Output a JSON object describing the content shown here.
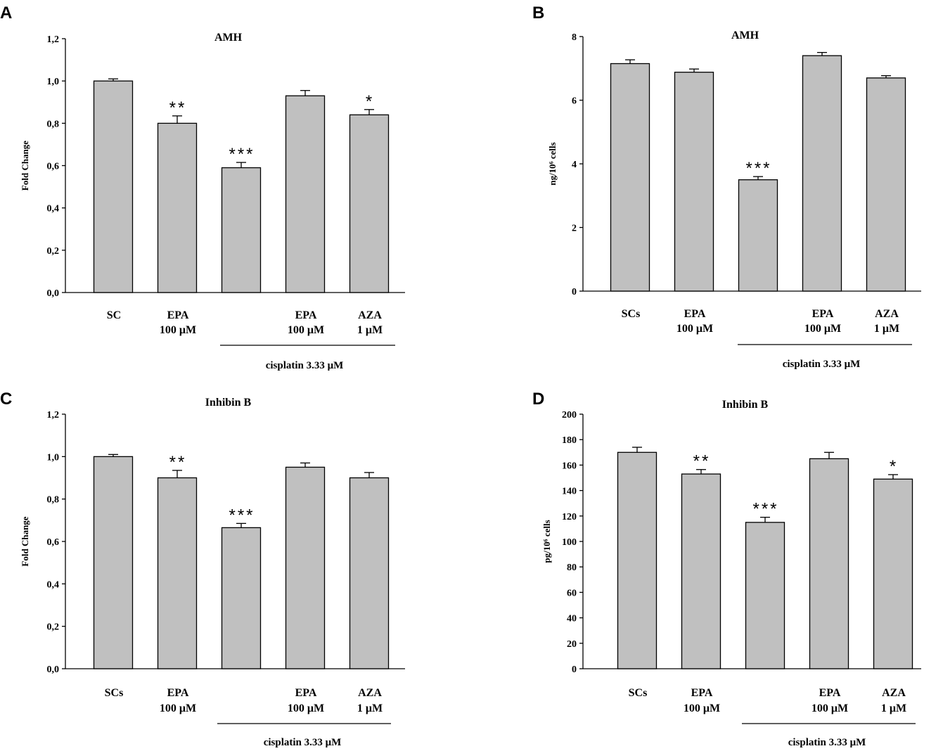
{
  "chart_data": [
    {
      "panel": "A",
      "type": "bar",
      "title": "AMH",
      "ylabel": "Fold Change",
      "ylim": [
        0,
        1.2
      ],
      "ticks": [
        "0,0",
        "0,2",
        "0,4",
        "0,6",
        "0,8",
        "1,0",
        "1,2"
      ],
      "categories": [
        {
          "line1": "SC",
          "line2": ""
        },
        {
          "line1": "EPA",
          "line2": "100 μM"
        },
        {
          "line1": "",
          "line2": ""
        },
        {
          "line1": "EPA",
          "line2": "100 μM"
        },
        {
          "line1": "AZA",
          "line2": "1 μM"
        }
      ],
      "values": [
        1.0,
        0.8,
        0.59,
        0.93,
        0.84
      ],
      "errors": [
        0.01,
        0.035,
        0.025,
        0.025,
        0.025
      ],
      "significance": [
        "",
        "**",
        "***",
        "",
        "*"
      ],
      "group_label": "cisplatin 3.33 μM"
    },
    {
      "panel": "B",
      "type": "bar",
      "title": "AMH",
      "ylabel": "ng/10⁶ cells",
      "ylim": [
        0,
        8
      ],
      "ticks": [
        "0",
        "2",
        "4",
        "6",
        "8"
      ],
      "categories": [
        {
          "line1": "SCs",
          "line2": ""
        },
        {
          "line1": "EPA",
          "line2": "100 μM"
        },
        {
          "line1": "",
          "line2": ""
        },
        {
          "line1": "EPA",
          "line2": "100 μM"
        },
        {
          "line1": "AZA",
          "line2": "1 μM"
        }
      ],
      "values": [
        7.15,
        6.88,
        3.5,
        7.4,
        6.7
      ],
      "errors": [
        0.12,
        0.1,
        0.1,
        0.1,
        0.07
      ],
      "significance": [
        "",
        "",
        "***",
        "",
        ""
      ],
      "group_label": "cisplatin 3.33 μM"
    },
    {
      "panel": "C",
      "type": "bar",
      "title": "Inhibin B",
      "ylabel": "Fold Change",
      "ylim": [
        0,
        1.2
      ],
      "ticks": [
        "0,0",
        "0,2",
        "0,4",
        "0,6",
        "0,8",
        "1,0",
        "1,2"
      ],
      "categories": [
        {
          "line1": "SCs",
          "line2": ""
        },
        {
          "line1": "EPA",
          "line2": "100 μM"
        },
        {
          "line1": "",
          "line2": ""
        },
        {
          "line1": "EPA",
          "line2": "100 μM"
        },
        {
          "line1": "AZA",
          "line2": "1 μM"
        }
      ],
      "values": [
        1.0,
        0.9,
        0.665,
        0.95,
        0.9
      ],
      "errors": [
        0.01,
        0.035,
        0.02,
        0.02,
        0.025
      ],
      "significance": [
        "",
        "**",
        "***",
        "",
        ""
      ],
      "group_label": "cisplatin 3.33 μM"
    },
    {
      "panel": "D",
      "type": "bar",
      "title": "Inhibin B",
      "ylabel": "pg/10⁶ cells",
      "ylim": [
        0,
        200
      ],
      "ticks": [
        "0",
        "20",
        "40",
        "60",
        "80",
        "100",
        "120",
        "140",
        "160",
        "180",
        "200"
      ],
      "categories": [
        {
          "line1": "SCs",
          "line2": ""
        },
        {
          "line1": "EPA",
          "line2": "100 μM"
        },
        {
          "line1": "",
          "line2": ""
        },
        {
          "line1": "EPA",
          "line2": "100 μM"
        },
        {
          "line1": "AZA",
          "line2": "1 μM"
        }
      ],
      "values": [
        170,
        153,
        115,
        165,
        149
      ],
      "errors": [
        4,
        3.5,
        4,
        5,
        3.5
      ],
      "significance": [
        "",
        "**",
        "***",
        "",
        "*"
      ],
      "group_label": "cisplatin 3.33 μM"
    }
  ]
}
